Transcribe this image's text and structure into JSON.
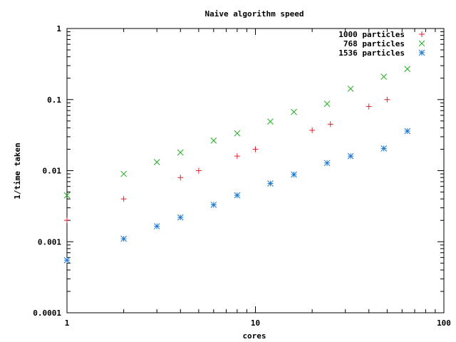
{
  "chart_data": {
    "type": "scatter",
    "title": "Naive algorithm speed",
    "xlabel": "cores",
    "ylabel": "1/time taken",
    "xscale": "log",
    "yscale": "log",
    "xlim": [
      1,
      100
    ],
    "ylim": [
      0.0001,
      1
    ],
    "x_ticks": [
      {
        "value": 1,
        "label": "1"
      },
      {
        "value": 10,
        "label": "10"
      },
      {
        "value": 100,
        "label": "100"
      }
    ],
    "y_ticks": [
      {
        "value": 0.0001,
        "label": "0.0001"
      },
      {
        "value": 0.001,
        "label": "0.001"
      },
      {
        "value": 0.01,
        "label": "0.01"
      },
      {
        "value": 0.1,
        "label": "0.1"
      },
      {
        "value": 1,
        "label": "1"
      }
    ],
    "grid": false,
    "legend_position": "top-right",
    "series": [
      {
        "name": "1000 particles",
        "marker": "plus",
        "color": "#e0202a",
        "points": [
          [
            1,
            0.002
          ],
          [
            2,
            0.004
          ],
          [
            4,
            0.008
          ],
          [
            5,
            0.01
          ],
          [
            8,
            0.016
          ],
          [
            10,
            0.02
          ],
          [
            20,
            0.037
          ],
          [
            25,
            0.045
          ],
          [
            40,
            0.08
          ],
          [
            50,
            0.1
          ]
        ]
      },
      {
        "name": "768 particles",
        "marker": "cross",
        "color": "#1fae1f",
        "points": [
          [
            1,
            0.0045
          ],
          [
            2,
            0.009
          ],
          [
            3,
            0.0132
          ],
          [
            4,
            0.018
          ],
          [
            6,
            0.0265
          ],
          [
            8,
            0.0335
          ],
          [
            12,
            0.049
          ],
          [
            16,
            0.067
          ],
          [
            24,
            0.087
          ],
          [
            32,
            0.142
          ],
          [
            48,
            0.21
          ],
          [
            64,
            0.27
          ]
        ]
      },
      {
        "name": "1536 particles",
        "marker": "star",
        "color": "#1c78d2",
        "points": [
          [
            1,
            0.00055
          ],
          [
            2,
            0.0011
          ],
          [
            3,
            0.00165
          ],
          [
            4,
            0.0022
          ],
          [
            6,
            0.0033
          ],
          [
            8,
            0.0045
          ],
          [
            12,
            0.0066
          ],
          [
            16,
            0.0088
          ],
          [
            24,
            0.0128
          ],
          [
            32,
            0.016
          ],
          [
            48,
            0.0205
          ],
          [
            64,
            0.036
          ]
        ]
      }
    ]
  }
}
